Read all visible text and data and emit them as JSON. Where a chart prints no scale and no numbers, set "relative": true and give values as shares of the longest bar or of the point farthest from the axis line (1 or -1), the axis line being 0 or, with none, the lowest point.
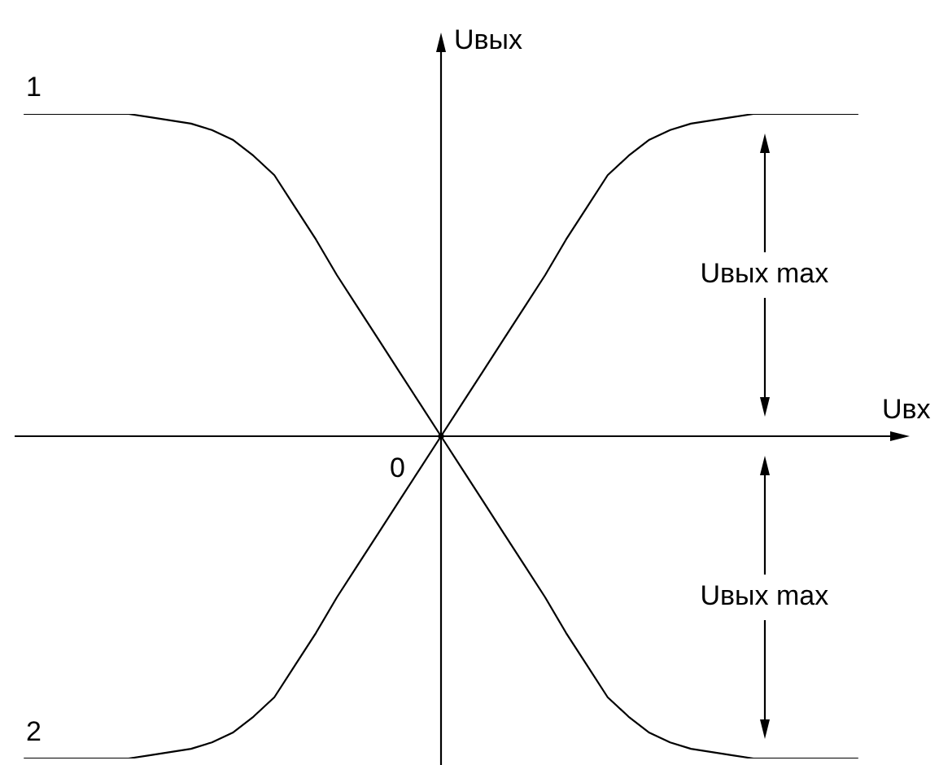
{
  "chart_data": {
    "type": "line",
    "xlabel": "Uвх",
    "ylabel": "Uвых",
    "relative": true,
    "categories": [
      null,
      null,
      null,
      null,
      null,
      null,
      null,
      null,
      null,
      null,
      null,
      null,
      null,
      null,
      null,
      null,
      null,
      null,
      null,
      null,
      null,
      null,
      null,
      null,
      null,
      null,
      null,
      null,
      null,
      null,
      null,
      null,
      null,
      null,
      null,
      null,
      null,
      null,
      null,
      null,
      null
    ],
    "series": [
      {
        "name": "1",
        "color": "#000000",
        "values": [
          1,
          1,
          1,
          1,
          1,
          1,
          0.99,
          0.98,
          0.97,
          0.95,
          0.92,
          0.87,
          0.81,
          0.71,
          0.61,
          0.5,
          0.4,
          0.3,
          0.2,
          0.1,
          0,
          -0.1,
          -0.2,
          -0.3,
          -0.4,
          -0.5,
          -0.61,
          -0.71,
          -0.81,
          -0.87,
          -0.92,
          -0.95,
          -0.97,
          -0.98,
          -0.99,
          -1,
          -1,
          -1,
          -1,
          -1,
          -1
        ]
      },
      {
        "name": "2",
        "color": "#000000",
        "values": [
          -1,
          -1,
          -1,
          -1,
          -1,
          -1,
          -0.99,
          -0.98,
          -0.97,
          -0.95,
          -0.92,
          -0.87,
          -0.81,
          -0.71,
          -0.61,
          -0.5,
          -0.4,
          -0.3,
          -0.2,
          -0.1,
          0,
          0.1,
          0.2,
          0.3,
          0.4,
          0.5,
          0.61,
          0.71,
          0.81,
          0.87,
          0.92,
          0.95,
          0.97,
          0.98,
          0.99,
          1,
          1,
          1,
          1,
          1,
          1
        ]
      }
    ],
    "annotations": [
      "0",
      "Uвых max",
      "Uвых max"
    ]
  }
}
